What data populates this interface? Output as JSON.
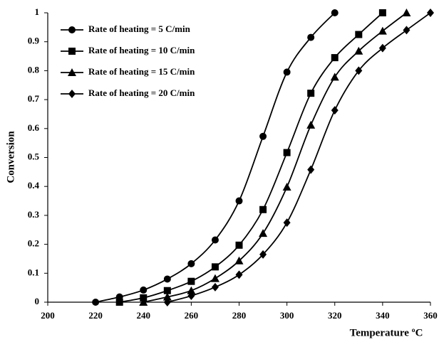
{
  "chart_data": {
    "type": "line",
    "xlabel": "Temperature ºC",
    "ylabel": "Conversion",
    "xlim": [
      200,
      360
    ],
    "xticks": [
      200,
      220,
      240,
      260,
      280,
      300,
      320,
      340,
      360
    ],
    "ylim": [
      0,
      1
    ],
    "yticks": [
      0,
      0.1,
      0.2,
      0.3,
      0.4,
      0.5,
      0.6,
      0.7,
      0.8,
      0.9,
      1
    ],
    "grid": false,
    "legend": "upper left",
    "smooth": true,
    "series": [
      {
        "name": "Rate of heating = 5 C/min",
        "color": "#000000",
        "marker": "circle",
        "x": [
          220,
          230,
          240,
          250,
          260,
          270,
          280,
          290,
          300,
          310,
          320
        ],
        "values": [
          0,
          0.018,
          0.042,
          0.08,
          0.133,
          0.215,
          0.35,
          0.573,
          0.795,
          0.915,
          1
        ]
      },
      {
        "name": "Rate of heating = 10 C/min",
        "color": "#000000",
        "marker": "square",
        "x": [
          230,
          240,
          250,
          260,
          270,
          280,
          290,
          300,
          310,
          320,
          330,
          340
        ],
        "values": [
          0,
          0.015,
          0.04,
          0.072,
          0.122,
          0.197,
          0.32,
          0.517,
          0.722,
          0.845,
          0.925,
          1
        ]
      },
      {
        "name": "Rate of heating = 15 C/min",
        "color": "#000000",
        "marker": "triangle",
        "x": [
          240,
          250,
          260,
          270,
          280,
          290,
          300,
          310,
          320,
          330,
          340,
          350
        ],
        "values": [
          0,
          0.018,
          0.04,
          0.082,
          0.143,
          0.238,
          0.398,
          0.612,
          0.778,
          0.868,
          0.937,
          1
        ]
      },
      {
        "name": "Rate of heating = 20 C/min",
        "color": "#000000",
        "marker": "diamond",
        "x": [
          250,
          260,
          270,
          280,
          290,
          300,
          310,
          320,
          330,
          340,
          350,
          360
        ],
        "values": [
          0,
          0.022,
          0.052,
          0.095,
          0.165,
          0.275,
          0.458,
          0.663,
          0.8,
          0.878,
          0.94,
          1
        ]
      }
    ]
  }
}
